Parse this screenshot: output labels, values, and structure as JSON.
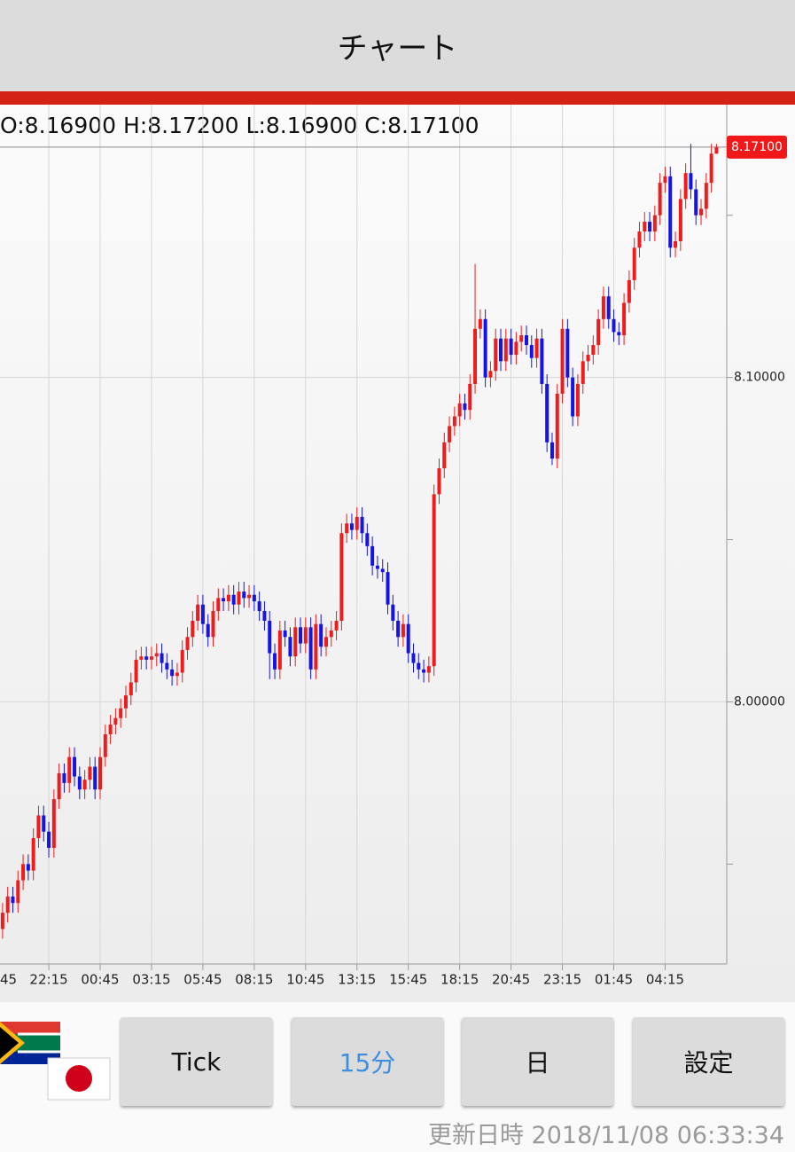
{
  "header": {
    "title": "チャート"
  },
  "chart_data": {
    "type": "candlestick",
    "ohlc_text": "O:8.16900 H:8.17200 L:8.16900 C:8.17100",
    "up_color": "#ee1c1c",
    "down_color": "#1414e6",
    "open": [
      7.93,
      7.935,
      7.94,
      7.938,
      7.945,
      7.95,
      7.948,
      7.958,
      7.965,
      7.96,
      7.955,
      7.97,
      7.978,
      7.975,
      7.983,
      7.977,
      7.973,
      7.976,
      7.98,
      7.973,
      7.983,
      7.99,
      7.993,
      7.995,
      7.998,
      8.002,
      8.006,
      8.013,
      8.014,
      8.013,
      8.014,
      8.015,
      8.012,
      8.01,
      8.008,
      8.009,
      8.016,
      8.02,
      8.025,
      8.03,
      8.024,
      8.02,
      8.028,
      8.032,
      8.031,
      8.033,
      8.03,
      8.034,
      8.032,
      8.033,
      8.031,
      8.028,
      8.025,
      8.015,
      8.01,
      8.022,
      8.02,
      8.014,
      8.023,
      8.018,
      8.023,
      8.01,
      8.024,
      8.017,
      8.02,
      8.022,
      8.025,
      8.052,
      8.055,
      8.053,
      8.057,
      8.052,
      8.048,
      8.042,
      8.041,
      8.04,
      8.03,
      8.025,
      8.02,
      8.024,
      8.015,
      8.012,
      8.01,
      8.009,
      8.011,
      8.064,
      8.072,
      8.08,
      8.085,
      8.088,
      8.092,
      8.09,
      8.098,
      8.115,
      8.118,
      8.1,
      8.102,
      8.112,
      8.105,
      8.112,
      8.107,
      8.111,
      8.113,
      8.11,
      8.106,
      8.112,
      8.098,
      8.08,
      8.075,
      8.095,
      8.115,
      8.1,
      8.088,
      8.098,
      8.105,
      8.107,
      8.11,
      8.118,
      8.125,
      8.118,
      8.114,
      8.113,
      8.123,
      8.13,
      8.14,
      8.145,
      8.148,
      8.145,
      8.15,
      8.16,
      8.162,
      8.14,
      8.142,
      8.155,
      8.163,
      8.158,
      8.15,
      8.152,
      8.16,
      8.169
    ],
    "high": [
      7.938,
      7.943,
      7.943,
      7.948,
      7.953,
      7.953,
      7.961,
      7.968,
      7.968,
      7.963,
      7.973,
      7.981,
      7.981,
      7.986,
      7.986,
      7.98,
      7.979,
      7.983,
      7.983,
      7.986,
      7.993,
      7.996,
      7.998,
      8.001,
      8.005,
      8.009,
      8.016,
      8.017,
      8.017,
      8.017,
      8.018,
      8.018,
      8.015,
      8.013,
      8.012,
      8.019,
      8.023,
      8.028,
      8.033,
      8.033,
      8.027,
      8.031,
      8.035,
      8.035,
      8.036,
      8.036,
      8.037,
      8.037,
      8.036,
      8.036,
      8.034,
      8.031,
      8.028,
      8.018,
      8.025,
      8.025,
      8.023,
      8.026,
      8.026,
      8.026,
      8.026,
      8.027,
      8.027,
      8.023,
      8.025,
      8.028,
      8.055,
      8.058,
      8.058,
      8.06,
      8.06,
      8.055,
      8.051,
      8.045,
      8.044,
      8.043,
      8.033,
      8.028,
      8.027,
      8.027,
      8.018,
      8.015,
      8.013,
      8.014,
      8.067,
      8.075,
      8.083,
      8.088,
      8.091,
      8.095,
      8.095,
      8.101,
      8.135,
      8.121,
      8.121,
      8.105,
      8.115,
      8.115,
      8.115,
      8.115,
      8.114,
      8.116,
      8.116,
      8.113,
      8.115,
      8.115,
      8.101,
      8.083,
      8.098,
      8.118,
      8.118,
      8.103,
      8.101,
      8.108,
      8.11,
      8.113,
      8.121,
      8.128,
      8.128,
      8.121,
      8.117,
      8.126,
      8.133,
      8.143,
      8.148,
      8.151,
      8.151,
      8.153,
      8.163,
      8.165,
      8.165,
      8.145,
      8.158,
      8.166,
      8.172,
      8.161,
      8.155,
      8.163,
      8.172,
      8.172
    ],
    "low": [
      7.927,
      7.932,
      7.935,
      7.935,
      7.942,
      7.945,
      7.945,
      7.955,
      7.957,
      7.952,
      7.952,
      7.967,
      7.972,
      7.972,
      7.974,
      7.97,
      7.97,
      7.973,
      7.97,
      7.97,
      7.98,
      7.987,
      7.99,
      7.992,
      7.995,
      7.999,
      8.003,
      8.01,
      8.01,
      8.01,
      8.011,
      8.009,
      8.007,
      8.005,
      8.005,
      8.006,
      8.013,
      8.017,
      8.022,
      8.021,
      8.017,
      8.017,
      8.025,
      8.028,
      8.028,
      8.027,
      8.027,
      8.029,
      8.029,
      8.028,
      8.025,
      8.022,
      8.007,
      8.007,
      8.007,
      8.017,
      8.011,
      8.011,
      8.015,
      8.015,
      8.007,
      8.007,
      8.014,
      8.014,
      8.017,
      8.019,
      8.022,
      8.049,
      8.05,
      8.05,
      8.049,
      8.045,
      8.039,
      8.038,
      8.037,
      8.027,
      8.022,
      8.017,
      8.017,
      8.012,
      8.009,
      8.007,
      8.006,
      8.006,
      8.008,
      8.061,
      8.069,
      8.077,
      8.082,
      8.085,
      8.087,
      8.087,
      8.095,
      8.112,
      8.097,
      8.097,
      8.099,
      8.102,
      8.102,
      8.104,
      8.104,
      8.108,
      8.107,
      8.103,
      8.103,
      8.095,
      8.077,
      8.073,
      8.072,
      8.092,
      8.097,
      8.085,
      8.085,
      8.095,
      8.102,
      8.104,
      8.107,
      8.115,
      8.115,
      8.111,
      8.11,
      8.11,
      8.12,
      8.127,
      8.137,
      8.142,
      8.142,
      8.142,
      8.147,
      8.157,
      8.137,
      8.137,
      8.139,
      8.152,
      8.155,
      8.147,
      8.147,
      8.149,
      8.157,
      8.169
    ],
    "close": [
      7.935,
      7.94,
      7.938,
      7.945,
      7.95,
      7.948,
      7.958,
      7.965,
      7.96,
      7.955,
      7.97,
      7.978,
      7.975,
      7.983,
      7.977,
      7.973,
      7.976,
      7.98,
      7.973,
      7.983,
      7.99,
      7.993,
      7.995,
      7.998,
      8.002,
      8.006,
      8.013,
      8.014,
      8.013,
      8.014,
      8.015,
      8.012,
      8.01,
      8.008,
      8.009,
      8.016,
      8.02,
      8.025,
      8.03,
      8.024,
      8.02,
      8.028,
      8.032,
      8.031,
      8.033,
      8.03,
      8.034,
      8.032,
      8.033,
      8.031,
      8.028,
      8.025,
      8.015,
      8.01,
      8.022,
      8.02,
      8.014,
      8.023,
      8.018,
      8.023,
      8.01,
      8.024,
      8.017,
      8.02,
      8.022,
      8.025,
      8.052,
      8.055,
      8.053,
      8.057,
      8.052,
      8.048,
      8.042,
      8.041,
      8.04,
      8.03,
      8.025,
      8.02,
      8.024,
      8.015,
      8.012,
      8.01,
      8.009,
      8.011,
      8.064,
      8.072,
      8.08,
      8.085,
      8.088,
      8.092,
      8.09,
      8.098,
      8.115,
      8.118,
      8.1,
      8.102,
      8.112,
      8.105,
      8.112,
      8.107,
      8.111,
      8.113,
      8.11,
      8.106,
      8.112,
      8.098,
      8.08,
      8.075,
      8.095,
      8.115,
      8.1,
      8.088,
      8.098,
      8.105,
      8.107,
      8.11,
      8.118,
      8.125,
      8.118,
      8.114,
      8.113,
      8.123,
      8.13,
      8.14,
      8.145,
      8.148,
      8.145,
      8.15,
      8.16,
      8.162,
      8.14,
      8.142,
      8.155,
      8.163,
      8.158,
      8.15,
      8.152,
      8.16,
      8.169,
      8.171
    ],
    "xlim": [
      -0.5,
      141
    ],
    "xticks": [
      {
        "value": -1,
        "label": "45"
      },
      {
        "value": 9,
        "label": "22:15"
      },
      {
        "value": 19,
        "label": "00:45"
      },
      {
        "value": 29,
        "label": "03:15"
      },
      {
        "value": 39,
        "label": "05:45"
      },
      {
        "value": 49,
        "label": "08:15"
      },
      {
        "value": 59,
        "label": "10:45"
      },
      {
        "value": 69,
        "label": "13:15"
      },
      {
        "value": 79,
        "label": "15:45"
      },
      {
        "value": 89,
        "label": "18:15"
      },
      {
        "value": 99,
        "label": "20:45"
      },
      {
        "value": 109,
        "label": "23:15"
      },
      {
        "value": 119,
        "label": "01:45"
      },
      {
        "value": 129,
        "label": "04:15"
      }
    ],
    "ylim": [
      7.9192,
      8.1841
    ],
    "yticks": [
      {
        "value": 8,
        "label": "8.00000"
      },
      {
        "value": 8.1,
        "label": "8.10000"
      }
    ],
    "y_minor_ticks": [
      7.95,
      8.05,
      8.15
    ],
    "last_price": {
      "value": 8.171,
      "label": "8.17100"
    },
    "grid": true
  },
  "buttons": [
    {
      "label": "Tick",
      "selected": false
    },
    {
      "label": "15分",
      "selected": true
    },
    {
      "label": "日",
      "selected": false
    },
    {
      "label": "設定",
      "selected": false
    }
  ],
  "footer": {
    "updated": "更新日時 2018/11/08 06:33:34"
  }
}
